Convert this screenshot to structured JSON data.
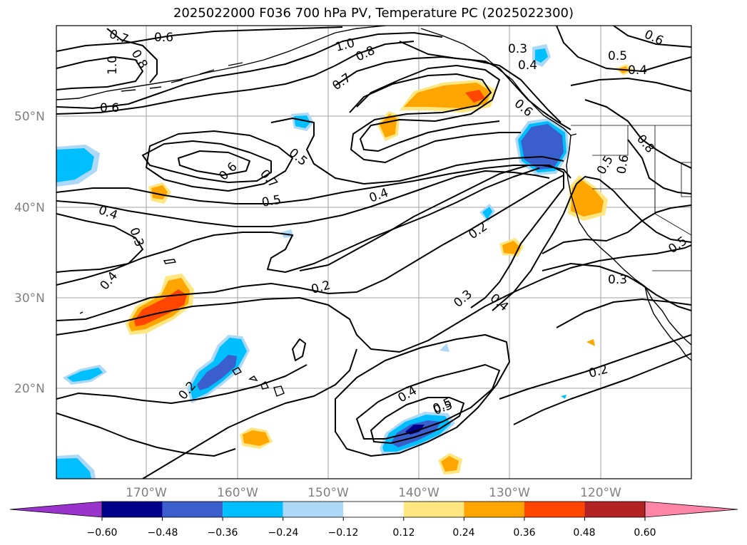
{
  "title": "2025022000 F036 700 hPa PV, Temperature PC (2025022300)",
  "lat_labels": [
    "50°N",
    "40°N",
    "30°N",
    "20°N"
  ],
  "lon_labels": [
    "170°W",
    "160°W",
    "150°W",
    "140°W",
    "130°W",
    "120°W"
  ],
  "contour_labels": [
    "0.7",
    "0.6",
    "1.0",
    "0.8",
    "0.6",
    "1.0",
    "0.8",
    "0.7",
    "0.3",
    "0.4",
    "0.5",
    "0.4",
    "0.6",
    "0.6",
    "0.5",
    "0.8",
    "0.7",
    "0.5",
    "0.4",
    "0.3",
    "0.5",
    "0.4",
    "0.2",
    "0.6",
    "0.6",
    "0.5",
    "0.4",
    "0.2",
    "0.3",
    "0.4",
    "0.3",
    "0.5",
    "0.2",
    "0.4",
    "0.5",
    "0.2"
  ],
  "colorbar": {
    "tick_labels": [
      "−0.60",
      "−0.48",
      "−0.36",
      "−0.24",
      "−0.12",
      "0.12",
      "0.24",
      "0.36",
      "0.48",
      "0.60"
    ],
    "colors": [
      "#9933cc",
      "#00008b",
      "#3a5fcd",
      "#00bfff",
      "#add8f7",
      "#ffffff",
      "#ffe680",
      "#ffa500",
      "#ff4500",
      "#b22222",
      "#ff85a8"
    ]
  },
  "colors": {
    "deep_blue": "#00008b",
    "mid_blue": "#3a5fcd",
    "cyan": "#00bfff",
    "light_blue": "#add8f7",
    "yellow": "#ffe680",
    "orange": "#ffa500",
    "red_orange": "#ff4500"
  }
}
